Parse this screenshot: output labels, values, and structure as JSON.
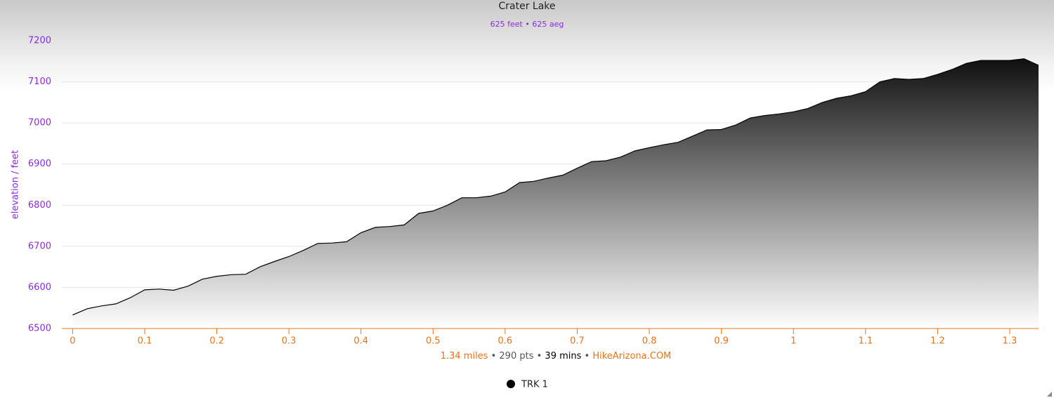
{
  "chart_data": {
    "type": "area",
    "title": "Crater Lake",
    "subtitle": "625 feet • 625 aeg",
    "y_label": "elevation / feet",
    "footer": [
      "1.34 miles",
      "290 pts",
      "39 mins",
      "HikeArizona.COM"
    ],
    "xlim": [
      -0.015,
      1.34
    ],
    "ylim": [
      6500,
      7200
    ],
    "xticks": [
      0,
      0.1,
      0.2,
      0.3,
      0.4,
      0.5,
      0.6,
      0.7,
      0.8,
      0.9,
      1,
      1.1,
      1.2,
      1.3
    ],
    "yticks": [
      6500,
      6600,
      6700,
      6800,
      6900,
      7000,
      7100,
      7200
    ],
    "grid": true,
    "x": [
      0,
      0.02,
      0.04,
      0.06,
      0.08,
      0.1,
      0.12,
      0.14,
      0.16,
      0.18,
      0.2,
      0.22,
      0.24,
      0.26,
      0.28,
      0.3,
      0.32,
      0.34,
      0.36,
      0.38,
      0.4,
      0.42,
      0.44,
      0.46,
      0.48,
      0.5,
      0.52,
      0.54,
      0.56,
      0.58,
      0.6,
      0.62,
      0.64,
      0.66,
      0.68,
      0.7,
      0.72,
      0.74,
      0.76,
      0.78,
      0.8,
      0.82,
      0.84,
      0.86,
      0.88,
      0.9,
      0.92,
      0.94,
      0.96,
      0.98,
      1.0,
      1.02,
      1.04,
      1.06,
      1.08,
      1.1,
      1.12,
      1.14,
      1.16,
      1.18,
      1.2,
      1.22,
      1.24,
      1.26,
      1.28,
      1.3,
      1.32,
      1.34
    ],
    "series": [
      {
        "name": "TRK 1",
        "color": "#000000",
        "values": [
          6533,
          6548,
          6555,
          6560,
          6575,
          6594,
          6596,
          6593,
          6603,
          6620,
          6627,
          6631,
          6632,
          6650,
          6663,
          6675,
          6690,
          6707,
          6708,
          6711,
          6733,
          6746,
          6748,
          6752,
          6780,
          6786,
          6800,
          6818,
          6818,
          6822,
          6832,
          6855,
          6858,
          6866,
          6873,
          6890,
          6906,
          6908,
          6917,
          6932,
          6940,
          6947,
          6953,
          6968,
          6983,
          6984,
          6995,
          7012,
          7018,
          7022,
          7027,
          7035,
          7050,
          7060,
          7066,
          7076,
          7100,
          7108,
          7106,
          7108,
          7118,
          7130,
          7145,
          7152,
          7152,
          7152,
          7156,
          7140
        ]
      }
    ]
  }
}
